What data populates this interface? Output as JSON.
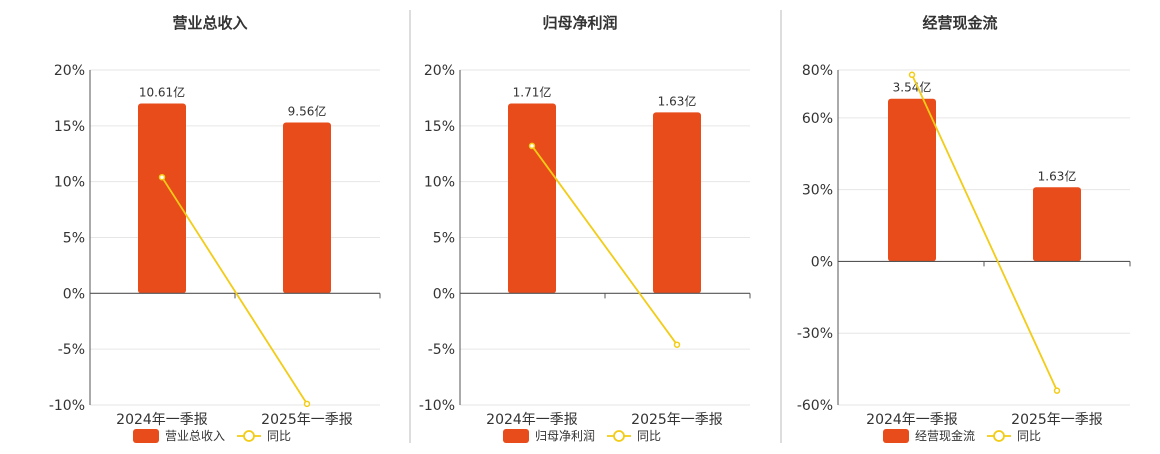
{
  "colors": {
    "bar": "#E84C1B",
    "line": "#F2CC17",
    "axis": "#555555",
    "grid": "#e6e6e6",
    "divider": "#bbbbbb",
    "text": "#333333"
  },
  "legend": {
    "line_label": "同比"
  },
  "chart_data": [
    {
      "type": "bar",
      "title": "营业总收入",
      "categories": [
        "2024年一季报",
        "2025年一季报"
      ],
      "ylim": [
        -10,
        20
      ],
      "yticks": [
        -10,
        -5,
        0,
        5,
        10,
        15,
        20
      ],
      "ytick_labels": [
        "-10%",
        "-5%",
        "0%",
        "5%",
        "10%",
        "15%",
        "20%"
      ],
      "series": [
        {
          "name": "营业总收入",
          "kind": "bar",
          "values": [
            17.0,
            15.3
          ],
          "value_labels": [
            "10.61亿",
            "9.56亿"
          ]
        },
        {
          "name": "同比",
          "kind": "line",
          "values": [
            10.4,
            -9.9
          ]
        }
      ],
      "grid": true,
      "legend_position": "bottom"
    },
    {
      "type": "bar",
      "title": "归母净利润",
      "categories": [
        "2024年一季报",
        "2025年一季报"
      ],
      "ylim": [
        -10,
        20
      ],
      "yticks": [
        -10,
        -5,
        0,
        5,
        10,
        15,
        20
      ],
      "ytick_labels": [
        "-10%",
        "-5%",
        "0%",
        "5%",
        "10%",
        "15%",
        "20%"
      ],
      "series": [
        {
          "name": "归母净利润",
          "kind": "bar",
          "values": [
            17.0,
            16.2
          ],
          "value_labels": [
            "1.71亿",
            "1.63亿"
          ]
        },
        {
          "name": "同比",
          "kind": "line",
          "values": [
            13.2,
            -4.6
          ]
        }
      ],
      "grid": true,
      "legend_position": "bottom"
    },
    {
      "type": "bar",
      "title": "经营现金流",
      "categories": [
        "2024年一季报",
        "2025年一季报"
      ],
      "ylim": [
        -60,
        80
      ],
      "yticks": [
        -60,
        -30,
        0,
        30,
        60,
        80
      ],
      "ytick_labels": [
        "-60%",
        "-30%",
        "0%",
        "30%",
        "60%",
        "80%"
      ],
      "series": [
        {
          "name": "经营现金流",
          "kind": "bar",
          "values": [
            68,
            31
          ],
          "value_labels": [
            "3.54亿",
            "1.63亿"
          ]
        },
        {
          "name": "同比",
          "kind": "line",
          "values": [
            78,
            -54
          ]
        }
      ],
      "grid": true,
      "legend_position": "bottom"
    }
  ]
}
